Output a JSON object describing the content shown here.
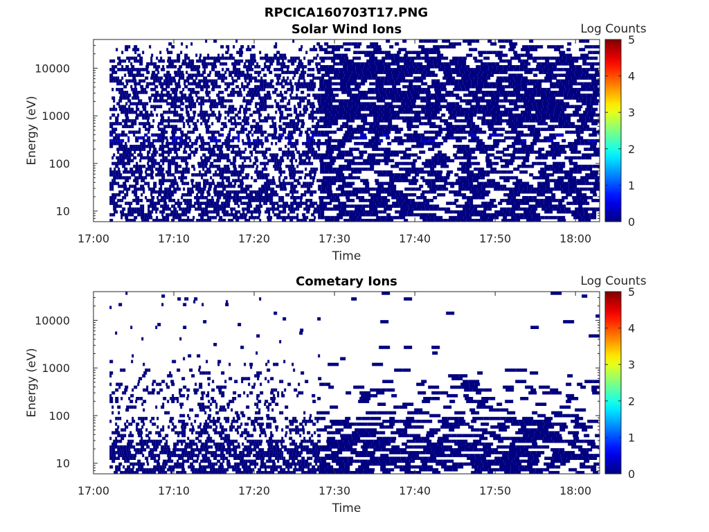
{
  "figure": {
    "title": "RPCICA160703T17.PNG"
  },
  "chart_data": [
    {
      "type": "heatmap",
      "title": "Solar Wind Ions",
      "xlabel": "Time",
      "ylabel": "Energy (eV)",
      "y_scale": "log",
      "ylim": [
        6,
        40000
      ],
      "xlim": [
        "17:00",
        "18:03"
      ],
      "x_ticks": [
        "17:00",
        "17:10",
        "17:20",
        "17:30",
        "17:40",
        "17:50",
        "18:00"
      ],
      "y_ticks": [
        "10",
        "100",
        "1000",
        "10000"
      ],
      "colorbar": {
        "label": "Log Counts",
        "min": 0,
        "max": 5,
        "ticks": [
          "0",
          "1",
          "2",
          "3",
          "4",
          "5"
        ]
      },
      "data_start": "17:02",
      "data_end": "18:02",
      "notes_visible": "Counts mostly at log level ~0 across 6 eV–40 keV; denser coverage after 17:28"
    },
    {
      "type": "heatmap",
      "title": "Cometary Ions",
      "xlabel": "Time",
      "ylabel": "Energy (eV)",
      "y_scale": "log",
      "ylim": [
        6,
        40000
      ],
      "xlim": [
        "17:00",
        "18:03"
      ],
      "x_ticks": [
        "17:00",
        "17:10",
        "17:20",
        "17:30",
        "17:40",
        "17:50",
        "18:00"
      ],
      "y_ticks": [
        "10",
        "100",
        "1000",
        "10000"
      ],
      "colorbar": {
        "label": "Log Counts",
        "min": 0,
        "max": 5,
        "ticks": [
          "0",
          "1",
          "2",
          "3",
          "4",
          "5"
        ]
      },
      "data_start": "17:02",
      "data_end": "18:02"
    }
  ]
}
